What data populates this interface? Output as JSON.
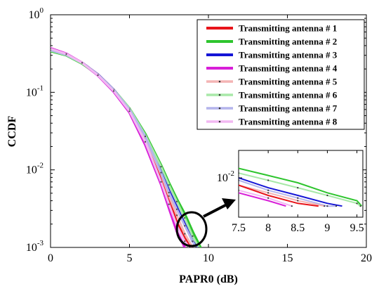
{
  "chart_data": [
    {
      "type": "line",
      "title": "",
      "xlabel": "PAPR0 (dB)",
      "ylabel": "CCDF",
      "xlim": [
        0,
        20
      ],
      "ylim": [
        0.001,
        1
      ],
      "yscale": "log",
      "x_ticks": [
        "0",
        "5",
        "10",
        "15",
        "20"
      ],
      "y_ticks": [
        {
          "base": "10",
          "exp": "0"
        },
        {
          "base": "10",
          "exp": "-1"
        },
        {
          "base": "10",
          "exp": "-2"
        },
        {
          "base": "10",
          "exp": "-3"
        }
      ],
      "grid": false,
      "legend_position": "top-right",
      "series": [
        {
          "name": "Transmitting antenna # 1",
          "color": "#e8141a",
          "style": "solid",
          "marker": "none",
          "x": [
            0,
            1,
            2,
            3,
            4,
            5,
            6,
            7,
            7.5,
            8,
            8.5,
            9
          ],
          "y": [
            0.36,
            0.31,
            0.24,
            0.17,
            0.108,
            0.06,
            0.025,
            0.008,
            0.0041,
            0.0021,
            0.0013,
            0.001
          ]
        },
        {
          "name": "Transmitting antenna # 2",
          "color": "#2ec52e",
          "style": "solid",
          "marker": "none",
          "x": [
            0,
            1,
            2,
            3,
            4,
            5,
            6,
            7,
            7.5,
            8,
            8.5,
            9,
            9.5
          ],
          "y": [
            0.34,
            0.3,
            0.235,
            0.168,
            0.108,
            0.062,
            0.029,
            0.0115,
            0.0068,
            0.0042,
            0.0027,
            0.0016,
            0.001
          ]
        },
        {
          "name": "Transmitting antenna # 3",
          "color": "#1515d6",
          "style": "solid",
          "marker": "none",
          "x": [
            0,
            1,
            2,
            3,
            4,
            5,
            6,
            7,
            7.5,
            8,
            8.5,
            9,
            9.3
          ],
          "y": [
            0.35,
            0.305,
            0.24,
            0.17,
            0.108,
            0.06,
            0.027,
            0.0095,
            0.0054,
            0.0033,
            0.002,
            0.0012,
            0.001
          ]
        },
        {
          "name": "Transmitting antenna # 4",
          "color": "#d81ed8",
          "style": "solid",
          "marker": "none",
          "x": [
            0,
            1,
            2,
            3,
            4,
            5,
            6,
            7,
            7.5,
            8,
            8.5
          ],
          "y": [
            0.37,
            0.315,
            0.24,
            0.165,
            0.102,
            0.055,
            0.021,
            0.0065,
            0.0032,
            0.0016,
            0.001
          ]
        },
        {
          "name": "Transmitting antenna # 5",
          "color": "#f4b4b4",
          "style": "solid",
          "marker": "dot",
          "x": [
            0,
            1,
            2,
            3,
            4,
            5,
            6,
            7,
            7.5,
            8,
            8.5,
            9
          ],
          "y": [
            0.355,
            0.31,
            0.24,
            0.17,
            0.108,
            0.061,
            0.026,
            0.0088,
            0.0046,
            0.0026,
            0.0015,
            0.001
          ]
        },
        {
          "name": "Transmitting antenna # 6",
          "color": "#a8e8a8",
          "style": "solid",
          "marker": "dot",
          "x": [
            0,
            1,
            2,
            3,
            4,
            5,
            6,
            7,
            7.5,
            8,
            8.5,
            9,
            9.4
          ],
          "y": [
            0.345,
            0.302,
            0.237,
            0.169,
            0.108,
            0.062,
            0.028,
            0.011,
            0.0064,
            0.0039,
            0.0024,
            0.0014,
            0.001
          ]
        },
        {
          "name": "Transmitting antenna # 7",
          "color": "#b4b4ec",
          "style": "solid",
          "marker": "dot",
          "x": [
            0,
            1,
            2,
            3,
            4,
            5,
            6,
            7,
            7.5,
            8,
            8.5,
            9,
            9.2
          ],
          "y": [
            0.35,
            0.305,
            0.24,
            0.17,
            0.108,
            0.06,
            0.027,
            0.0092,
            0.0051,
            0.0031,
            0.0019,
            0.0012,
            0.001
          ]
        },
        {
          "name": "Transmitting antenna # 8",
          "color": "#f2b8f2",
          "style": "solid",
          "marker": "dot",
          "x": [
            0,
            1,
            2,
            3,
            4,
            5,
            6,
            7,
            7.5,
            8,
            8.5,
            8.8
          ],
          "y": [
            0.365,
            0.312,
            0.24,
            0.166,
            0.104,
            0.057,
            0.023,
            0.007,
            0.0036,
            0.0019,
            0.0012,
            0.001
          ]
        }
      ]
    },
    {
      "type": "line",
      "title": "",
      "xlabel": "",
      "ylabel": "",
      "xlim": [
        7.5,
        9.6
      ],
      "ylim": [
        0.0085,
        0.0112
      ],
      "yscale": "log",
      "x_ticks": [
        "7.5",
        "8",
        "8.5",
        "9",
        "9.5"
      ],
      "y_ticks": [
        {
          "base": "10",
          "exp": "-2"
        }
      ],
      "grid": false,
      "series": [
        {
          "name": "Transmitting antenna # 2",
          "color": "#2ec52e",
          "marker": "none",
          "x": [
            7.5,
            8,
            8.5,
            9,
            9.5,
            9.58
          ],
          "y": [
            0.0104,
            0.0101,
            0.0098,
            0.0094,
            0.0091,
            0.0089
          ]
        },
        {
          "name": "Transmitting antenna # 6",
          "color": "#a8e8a8",
          "marker": "dot",
          "x": [
            7.5,
            8,
            8.5,
            9,
            9.5,
            9.56
          ],
          "y": [
            0.0102,
            0.0099,
            0.0096,
            0.0093,
            0.009,
            0.0089
          ]
        },
        {
          "name": "Transmitting antenna # 3",
          "color": "#1515d6",
          "marker": "none",
          "x": [
            7.5,
            8,
            8.5,
            9,
            9.25
          ],
          "y": [
            0.01,
            0.0096,
            0.0093,
            0.009,
            0.0089
          ]
        },
        {
          "name": "Transmitting antenna # 7",
          "color": "#b4b4ec",
          "marker": "dot",
          "x": [
            7.5,
            8,
            8.5,
            9,
            9.15
          ],
          "y": [
            0.0099,
            0.0095,
            0.0092,
            0.0089,
            0.0089
          ]
        },
        {
          "name": "Transmitting antenna # 5",
          "color": "#f4b4b4",
          "marker": "dot",
          "x": [
            7.5,
            8,
            8.5,
            8.95
          ],
          "y": [
            0.0097,
            0.0094,
            0.0091,
            0.0089
          ]
        },
        {
          "name": "Transmitting antenna # 1",
          "color": "#e8141a",
          "marker": "none",
          "x": [
            7.5,
            8,
            8.5,
            8.85
          ],
          "y": [
            0.0097,
            0.0093,
            0.009,
            0.0089
          ]
        },
        {
          "name": "Transmitting antenna # 8",
          "color": "#f2b8f2",
          "marker": "dot",
          "x": [
            7.5,
            8,
            8.4
          ],
          "y": [
            0.0095,
            0.0092,
            0.0089
          ]
        },
        {
          "name": "Transmitting antenna # 4",
          "color": "#d81ed8",
          "marker": "none",
          "x": [
            7.5,
            8,
            8.3
          ],
          "y": [
            0.0094,
            0.0091,
            0.0089
          ]
        }
      ]
    }
  ]
}
